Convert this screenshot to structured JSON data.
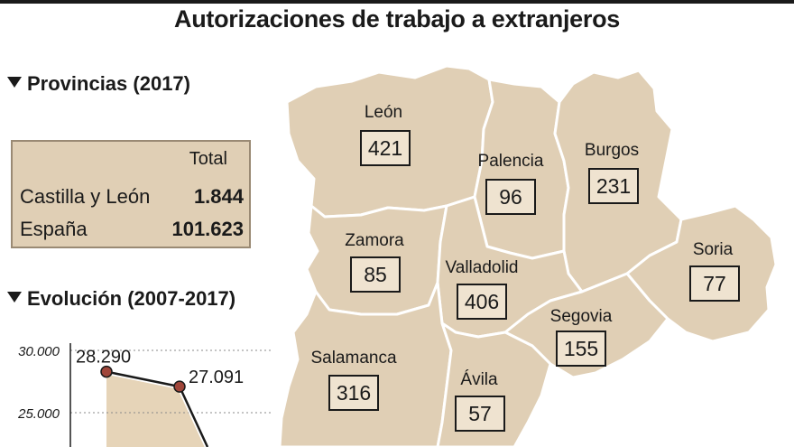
{
  "title": "Autorizaciones de trabajo a extranjeros",
  "provincias_section": {
    "heading": "Provincias (2017)",
    "column_header": "Total",
    "rows": [
      {
        "label": "Castilla y León",
        "value": "1.844"
      },
      {
        "label": "España",
        "value": "101.623"
      }
    ]
  },
  "evolucion_section": {
    "heading": "Evolución (2007-2017)"
  },
  "chart_data": {
    "type": "area",
    "y_tick_labels": [
      "30.000",
      "25.000"
    ],
    "ylim": [
      22500,
      30000
    ],
    "points": [
      {
        "label": "28.290",
        "value": 28290
      },
      {
        "label": "27.091",
        "value": 27091
      }
    ],
    "grid": true
  },
  "map": {
    "provinces": [
      {
        "name": "León",
        "value": "421"
      },
      {
        "name": "Palencia",
        "value": "96"
      },
      {
        "name": "Burgos",
        "value": "231"
      },
      {
        "name": "Zamora",
        "value": "85"
      },
      {
        "name": "Valladolid",
        "value": "406"
      },
      {
        "name": "Soria",
        "value": "77"
      },
      {
        "name": "Segovia",
        "value": "155"
      },
      {
        "name": "Salamanca",
        "value": "316"
      },
      {
        "name": "Ávila",
        "value": "57"
      }
    ],
    "fill_color": "#e0cfb5",
    "border_color": "#ffffff"
  }
}
